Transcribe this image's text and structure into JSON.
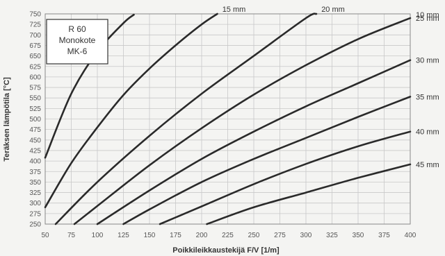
{
  "chart_data": {
    "type": "line",
    "xlabel": "Poikkileikkaustekijä F/V [1/m]",
    "ylabel": "Teräksen lämpötila [°C]",
    "xlim": [
      50,
      400
    ],
    "ylim": [
      250,
      750
    ],
    "x_ticks": [
      50,
      75,
      100,
      125,
      150,
      175,
      200,
      225,
      250,
      275,
      300,
      325,
      350,
      375,
      400
    ],
    "y_ticks": [
      250,
      275,
      300,
      325,
      350,
      375,
      400,
      425,
      450,
      475,
      500,
      525,
      550,
      575,
      600,
      625,
      650,
      675,
      700,
      725,
      750
    ],
    "grid": true,
    "info_box": [
      "R 60",
      "Monokote",
      "MK-6"
    ],
    "series": [
      {
        "name": "10 mm",
        "x": [
          50,
          75,
          100,
          125,
          135
        ],
        "y": [
          408,
          560,
          660,
          728,
          748
        ]
      },
      {
        "name": "15 mm",
        "x": [
          50,
          75,
          100,
          125,
          150,
          175,
          200,
          215
        ],
        "y": [
          290,
          395,
          480,
          557,
          620,
          675,
          725,
          750
        ]
      },
      {
        "name": "20 mm",
        "x": [
          60,
          100,
          150,
          200,
          250,
          300,
          310
        ],
        "y": [
          250,
          350,
          460,
          560,
          650,
          740,
          750
        ]
      },
      {
        "name": "25 mm",
        "x": [
          78,
          100,
          150,
          200,
          250,
          300,
          350,
          400
        ],
        "y": [
          250,
          293,
          390,
          478,
          558,
          628,
          690,
          740
        ]
      },
      {
        "name": "30 mm",
        "x": [
          100,
          150,
          200,
          250,
          300,
          350,
          400
        ],
        "y": [
          250,
          330,
          405,
          470,
          530,
          585,
          640
        ]
      },
      {
        "name": "35 mm",
        "x": [
          125,
          150,
          200,
          250,
          300,
          350,
          400
        ],
        "y": [
          250,
          285,
          350,
          405,
          455,
          505,
          553
        ]
      },
      {
        "name": "40 mm",
        "x": [
          160,
          200,
          250,
          300,
          350,
          400
        ],
        "y": [
          250,
          292,
          345,
          393,
          435,
          470
        ]
      },
      {
        "name": "45 mm",
        "x": [
          205,
          250,
          300,
          350,
          400
        ],
        "y": [
          250,
          290,
          325,
          360,
          392
        ]
      }
    ]
  }
}
